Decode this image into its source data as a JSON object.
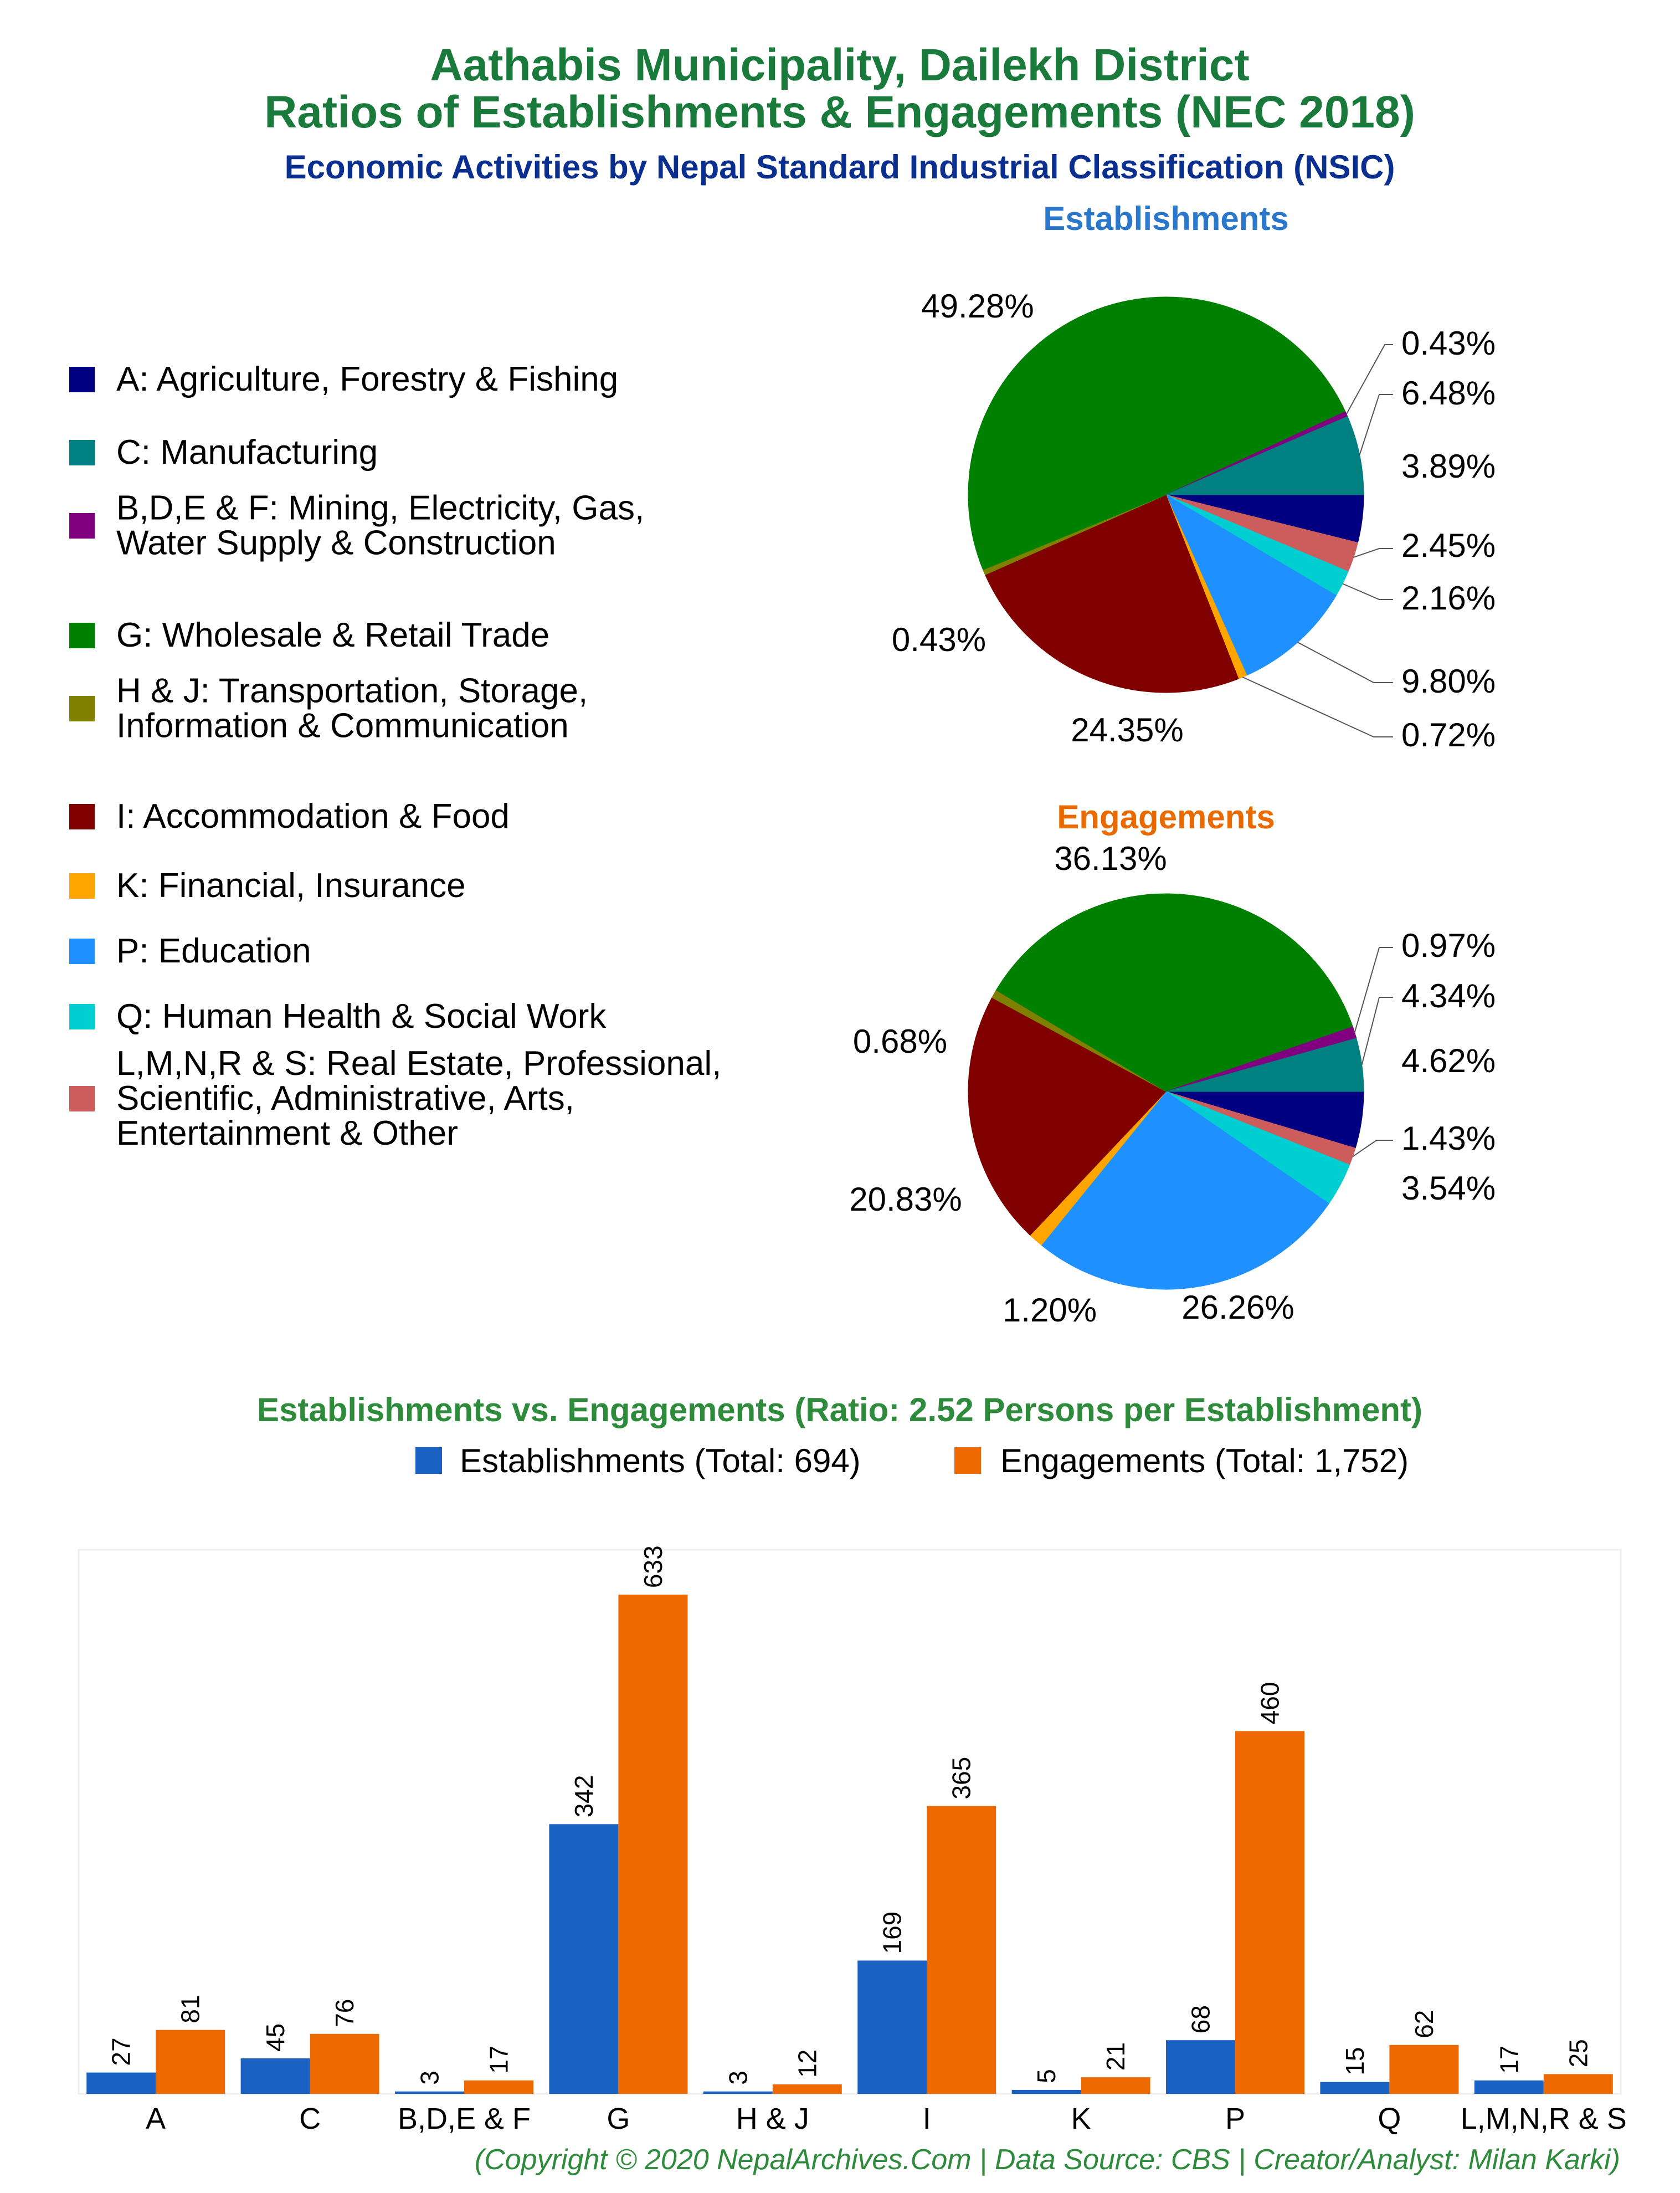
{
  "header": {
    "title_line1": "Aathabis Municipality, Dailekh District",
    "title_line2": "Ratios of Establishments & Engagements (NEC 2018)",
    "subtitle": "Economic Activities by Nepal Standard Industrial Classification (NSIC)"
  },
  "legend": {
    "items": [
      {
        "key": "A",
        "lines": [
          "A: Agriculture, Forestry & Fishing"
        ],
        "color": "#000080"
      },
      {
        "key": "C",
        "lines": [
          "C: Manufacturing"
        ],
        "color": "#008080"
      },
      {
        "key": "BDEF",
        "lines": [
          "B,D,E & F: Mining, Electricity, Gas,",
          "Water Supply & Construction"
        ],
        "color": "#800080"
      },
      {
        "key": "G",
        "lines": [
          "G: Wholesale & Retail Trade"
        ],
        "color": "#008000"
      },
      {
        "key": "HJ",
        "lines": [
          "H & J: Transportation, Storage,",
          "Information & Communication"
        ],
        "color": "#808000"
      },
      {
        "key": "I",
        "lines": [
          "I: Accommodation & Food"
        ],
        "color": "#800000"
      },
      {
        "key": "K",
        "lines": [
          "K: Financial, Insurance"
        ],
        "color": "#ffa500"
      },
      {
        "key": "P",
        "lines": [
          "P: Education"
        ],
        "color": "#1e90ff"
      },
      {
        "key": "Q",
        "lines": [
          "Q: Human Health & Social Work"
        ],
        "color": "#00ced1"
      },
      {
        "key": "LMNRS",
        "lines": [
          "L,M,N,R & S: Real Estate, Professional,",
          "Scientific, Administrative, Arts,",
          "Entertainment & Other"
        ],
        "color": "#cd5c5c"
      }
    ]
  },
  "chart_data": [
    {
      "type": "pie",
      "title": "Establishments",
      "slices": [
        {
          "key": "A",
          "value": 3.89,
          "label": "3.89%"
        },
        {
          "key": "LMNRS",
          "value": 2.45,
          "label": "2.45%"
        },
        {
          "key": "Q",
          "value": 2.16,
          "label": "2.16%"
        },
        {
          "key": "P",
          "value": 9.8,
          "label": "9.80%"
        },
        {
          "key": "K",
          "value": 0.72,
          "label": "0.72%"
        },
        {
          "key": "I",
          "value": 24.35,
          "label": "24.35%"
        },
        {
          "key": "HJ",
          "value": 0.43,
          "label": "0.43%"
        },
        {
          "key": "G",
          "value": 49.28,
          "label": "49.28%"
        },
        {
          "key": "BDEF",
          "value": 0.43,
          "label": "0.43%"
        },
        {
          "key": "C",
          "value": 6.48,
          "label": "6.48%"
        }
      ]
    },
    {
      "type": "pie",
      "title": "Engagements",
      "slices": [
        {
          "key": "A",
          "value": 4.62,
          "label": "4.62%"
        },
        {
          "key": "LMNRS",
          "value": 1.43,
          "label": "1.43%"
        },
        {
          "key": "Q",
          "value": 3.54,
          "label": "3.54%"
        },
        {
          "key": "P",
          "value": 26.26,
          "label": "26.26%"
        },
        {
          "key": "K",
          "value": 1.2,
          "label": "1.20%"
        },
        {
          "key": "I",
          "value": 20.83,
          "label": "20.83%"
        },
        {
          "key": "HJ",
          "value": 0.68,
          "label": "0.68%"
        },
        {
          "key": "G",
          "value": 36.13,
          "label": "36.13%"
        },
        {
          "key": "BDEF",
          "value": 0.97,
          "label": "0.97%"
        },
        {
          "key": "C",
          "value": 4.34,
          "label": "4.34%"
        }
      ]
    },
    {
      "type": "bar",
      "title": "Establishments vs. Engagements (Ratio: 2.52 Persons per Establishment)",
      "categories": [
        "A",
        "C",
        "B,D,E & F",
        "G",
        "H & J",
        "I",
        "K",
        "P",
        "Q",
        "L,M,N,R & S"
      ],
      "series": [
        {
          "name": "Establishments (Total: 694)",
          "color": "#1a63c4",
          "values": [
            27,
            45,
            3,
            342,
            3,
            169,
            5,
            68,
            15,
            17
          ]
        },
        {
          "name": "Engagements (Total: 1,752)",
          "color": "#ee6a00",
          "values": [
            81,
            76,
            17,
            633,
            12,
            365,
            21,
            460,
            62,
            25
          ]
        }
      ],
      "ylim": [
        0,
        690
      ],
      "legend_position": "top"
    }
  ],
  "footer": "(Copyright © 2020 NepalArchives.Com | Data Source: CBS | Creator/Analyst: Milan Karki)"
}
